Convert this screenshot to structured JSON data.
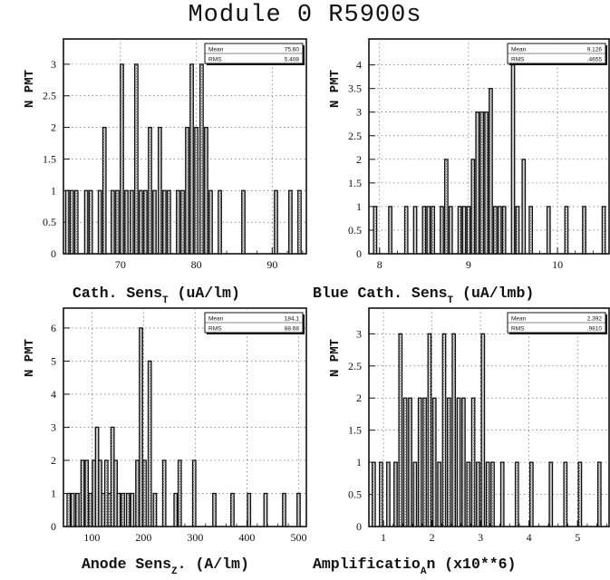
{
  "page": {
    "title": "Module 0 R5900s"
  },
  "chart_data": [
    {
      "type": "bar",
      "panel": "top-left",
      "xlabel": "Cath. Sens",
      "xlabel_subscript": "T",
      "xlabel_suffix": " (uA/lm)",
      "ylabel": "N PMT",
      "xlim": [
        62.5,
        94.5
      ],
      "ylim": [
        0,
        3.4
      ],
      "xticks": [
        70,
        80,
        90
      ],
      "yticks": [
        0,
        0.5,
        1,
        1.5,
        2,
        2.5,
        3
      ],
      "grid": true,
      "legend": "top-right",
      "stats": {
        "mean_label": "Mean",
        "mean": "75.60",
        "rms_label": "RMS",
        "rms": "5.408"
      },
      "bars": [
        {
          "x": 63.0,
          "y": 1
        },
        {
          "x": 63.6,
          "y": 1
        },
        {
          "x": 64.2,
          "y": 1
        },
        {
          "x": 65.5,
          "y": 1
        },
        {
          "x": 66.1,
          "y": 1
        },
        {
          "x": 67.3,
          "y": 1
        },
        {
          "x": 67.9,
          "y": 2
        },
        {
          "x": 69.0,
          "y": 1
        },
        {
          "x": 69.6,
          "y": 1
        },
        {
          "x": 70.2,
          "y": 3
        },
        {
          "x": 70.8,
          "y": 1
        },
        {
          "x": 71.5,
          "y": 1
        },
        {
          "x": 72.1,
          "y": 3
        },
        {
          "x": 72.7,
          "y": 1
        },
        {
          "x": 73.3,
          "y": 1
        },
        {
          "x": 73.9,
          "y": 2
        },
        {
          "x": 74.5,
          "y": 1
        },
        {
          "x": 75.2,
          "y": 2
        },
        {
          "x": 75.8,
          "y": 1
        },
        {
          "x": 76.4,
          "y": 1
        },
        {
          "x": 77.6,
          "y": 1
        },
        {
          "x": 78.2,
          "y": 1
        },
        {
          "x": 78.8,
          "y": 2
        },
        {
          "x": 79.4,
          "y": 3
        },
        {
          "x": 80.0,
          "y": 2
        },
        {
          "x": 80.7,
          "y": 3
        },
        {
          "x": 81.3,
          "y": 2
        },
        {
          "x": 81.9,
          "y": 1
        },
        {
          "x": 83.1,
          "y": 1
        },
        {
          "x": 86.2,
          "y": 1
        },
        {
          "x": 90.5,
          "y": 1
        },
        {
          "x": 92.4,
          "y": 1
        },
        {
          "x": 93.6,
          "y": 1
        }
      ]
    },
    {
      "type": "bar",
      "panel": "top-right",
      "xlabel": "Blue Cath. Sens",
      "xlabel_subscript": "T",
      "xlabel_suffix": " (uA/lmb)",
      "ylabel": "N PMT",
      "xlim": [
        7.88,
        10.58
      ],
      "ylim": [
        0,
        4.55
      ],
      "xticks": [
        8,
        9,
        10
      ],
      "yticks": [
        0,
        0.5,
        1,
        1.5,
        2,
        2.5,
        3,
        3.5,
        4
      ],
      "grid": true,
      "legend": "top-right",
      "stats": {
        "mean_label": "Mean",
        "mean": "9.126",
        "rms_label": "RMS",
        "rms": ".4655"
      },
      "bars": [
        {
          "x": 7.95,
          "y": 1
        },
        {
          "x": 8.12,
          "y": 1
        },
        {
          "x": 8.3,
          "y": 1
        },
        {
          "x": 8.4,
          "y": 1
        },
        {
          "x": 8.5,
          "y": 1
        },
        {
          "x": 8.55,
          "y": 1
        },
        {
          "x": 8.6,
          "y": 1
        },
        {
          "x": 8.7,
          "y": 1
        },
        {
          "x": 8.75,
          "y": 2
        },
        {
          "x": 8.8,
          "y": 1
        },
        {
          "x": 8.9,
          "y": 1
        },
        {
          "x": 8.95,
          "y": 1
        },
        {
          "x": 9.0,
          "y": 1
        },
        {
          "x": 9.05,
          "y": 2
        },
        {
          "x": 9.1,
          "y": 3
        },
        {
          "x": 9.15,
          "y": 3
        },
        {
          "x": 9.2,
          "y": 3
        },
        {
          "x": 9.25,
          "y": 3.5
        },
        {
          "x": 9.3,
          "y": 1
        },
        {
          "x": 9.35,
          "y": 1
        },
        {
          "x": 9.4,
          "y": 1
        },
        {
          "x": 9.5,
          "y": 4
        },
        {
          "x": 9.55,
          "y": 1
        },
        {
          "x": 9.62,
          "y": 2
        },
        {
          "x": 9.7,
          "y": 1
        },
        {
          "x": 9.9,
          "y": 1
        },
        {
          "x": 10.1,
          "y": 1
        },
        {
          "x": 10.3,
          "y": 1
        },
        {
          "x": 10.52,
          "y": 1
        }
      ]
    },
    {
      "type": "bar",
      "panel": "bottom-left",
      "xlabel": "Anode Sens",
      "xlabel_subscript": "Z",
      "xlabel_suffix": ". (A/lm)",
      "ylabel": "N PMT",
      "xlim": [
        45,
        515
      ],
      "ylim": [
        0,
        6.6
      ],
      "xticks": [
        100,
        200,
        300,
        400,
        500
      ],
      "yticks": [
        0,
        1,
        2,
        3,
        4,
        5,
        6
      ],
      "grid": true,
      "legend": "top-right",
      "stats": {
        "mean_label": "Mean",
        "mean": "184.1",
        "rms_label": "RMS",
        "rms": "88.68"
      },
      "bars": [
        {
          "x": 55,
          "y": 1
        },
        {
          "x": 63,
          "y": 1
        },
        {
          "x": 72,
          "y": 1
        },
        {
          "x": 82,
          "y": 2
        },
        {
          "x": 90,
          "y": 2
        },
        {
          "x": 97,
          "y": 1
        },
        {
          "x": 104,
          "y": 2
        },
        {
          "x": 110,
          "y": 3
        },
        {
          "x": 116,
          "y": 2
        },
        {
          "x": 122,
          "y": 1
        },
        {
          "x": 128,
          "y": 2
        },
        {
          "x": 134,
          "y": 1
        },
        {
          "x": 140,
          "y": 3
        },
        {
          "x": 146,
          "y": 2
        },
        {
          "x": 152,
          "y": 1
        },
        {
          "x": 160,
          "y": 1
        },
        {
          "x": 170,
          "y": 1
        },
        {
          "x": 178,
          "y": 1
        },
        {
          "x": 188,
          "y": 2
        },
        {
          "x": 195,
          "y": 6
        },
        {
          "x": 202,
          "y": 2
        },
        {
          "x": 212,
          "y": 5
        },
        {
          "x": 222,
          "y": 1
        },
        {
          "x": 240,
          "y": 2
        },
        {
          "x": 262,
          "y": 1
        },
        {
          "x": 270,
          "y": 2
        },
        {
          "x": 298,
          "y": 2
        },
        {
          "x": 337,
          "y": 1
        },
        {
          "x": 372,
          "y": 1
        },
        {
          "x": 404,
          "y": 1
        },
        {
          "x": 436,
          "y": 1
        },
        {
          "x": 472,
          "y": 1
        },
        {
          "x": 500,
          "y": 1
        }
      ]
    },
    {
      "type": "bar",
      "panel": "bottom-right",
      "xlabel": "Amplificatio",
      "xlabel_subscript": "A",
      "xlabel_suffix": "n (x10**6)",
      "ylabel": "N PMT",
      "xlim": [
        0.7,
        5.65
      ],
      "ylim": [
        0,
        3.4
      ],
      "xticks": [
        1,
        2,
        3,
        4,
        5
      ],
      "yticks": [
        0,
        0.5,
        1,
        1.5,
        2,
        2.5,
        3
      ],
      "grid": true,
      "legend": "top-right",
      "stats": {
        "mean_label": "Mean",
        "mean": "2.392",
        "rms_label": "RMS",
        "rms": ".9810"
      },
      "bars": [
        {
          "x": 0.8,
          "y": 1
        },
        {
          "x": 0.95,
          "y": 1
        },
        {
          "x": 1.1,
          "y": 1
        },
        {
          "x": 1.25,
          "y": 1
        },
        {
          "x": 1.35,
          "y": 3
        },
        {
          "x": 1.45,
          "y": 2
        },
        {
          "x": 1.55,
          "y": 2
        },
        {
          "x": 1.65,
          "y": 1
        },
        {
          "x": 1.75,
          "y": 2
        },
        {
          "x": 1.85,
          "y": 2
        },
        {
          "x": 1.95,
          "y": 3
        },
        {
          "x": 2.05,
          "y": 2
        },
        {
          "x": 2.15,
          "y": 1
        },
        {
          "x": 2.25,
          "y": 3
        },
        {
          "x": 2.35,
          "y": 2
        },
        {
          "x": 2.45,
          "y": 3
        },
        {
          "x": 2.55,
          "y": 2
        },
        {
          "x": 2.65,
          "y": 2
        },
        {
          "x": 2.75,
          "y": 1
        },
        {
          "x": 2.85,
          "y": 2
        },
        {
          "x": 2.95,
          "y": 1
        },
        {
          "x": 3.05,
          "y": 3
        },
        {
          "x": 3.15,
          "y": 1
        },
        {
          "x": 3.25,
          "y": 1
        },
        {
          "x": 3.45,
          "y": 1
        },
        {
          "x": 3.75,
          "y": 1
        },
        {
          "x": 4.05,
          "y": 1
        },
        {
          "x": 4.45,
          "y": 1
        },
        {
          "x": 4.75,
          "y": 1
        },
        {
          "x": 5.05,
          "y": 1
        },
        {
          "x": 5.45,
          "y": 1
        }
      ]
    }
  ]
}
